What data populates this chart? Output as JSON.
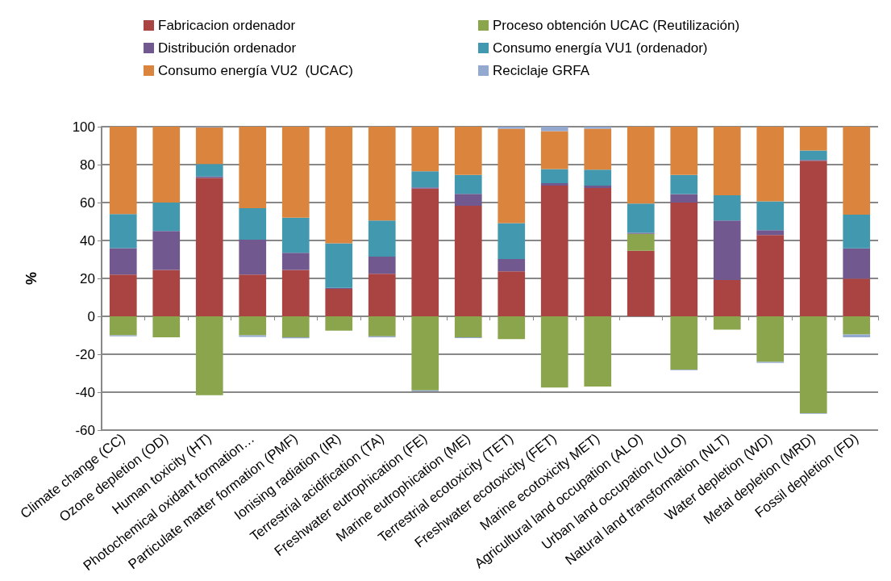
{
  "chart_data": {
    "type": "bar",
    "stacked": true,
    "ylabel": "%",
    "categories": [
      "Climate change (CC)",
      "Ozone depletion (OD)",
      "Human toxicity (HT)",
      "Photochemical oxidant formation…",
      "Particulate matter formation (PMF)",
      "Ionising radiation (IR)",
      "Terrestrial acidification (TA)",
      "Freshwater eutrophication (FE)",
      "Marine eutrophication (ME)",
      "Terrestrial ecotoxicity (TET)",
      "Freshwater ecotoxicity (FET)",
      "Marine ecotoxicity MET)",
      "Agricultural land occupation (ALO)",
      "Urban land occupation (ULO)",
      "Natural land transformation (NLT)",
      "Water depletion (WD)",
      "Metal depletion (MRD)",
      "Fossil depletion (FD)"
    ],
    "series": [
      {
        "name": "Fabricacion ordenador",
        "color": "#a94443",
        "values": [
          22,
          24.5,
          73,
          22,
          24.5,
          14.5,
          22.5,
          67.3,
          58.3,
          23.8,
          69,
          67.7,
          34.6,
          60,
          19.2,
          42.9,
          82,
          19.9
        ]
      },
      {
        "name": "Proceso obtención UCAC (Reutilización)",
        "color": "#8aa54b",
        "values": [
          -10,
          -11,
          -41.5,
          -10,
          -11,
          -7.5,
          -10.5,
          -39,
          -11,
          -12,
          -37.5,
          -37,
          8.9,
          -28,
          -7,
          -24,
          -51,
          -9.5
        ]
      },
      {
        "name": "Distribución ordenador",
        "color": "#71588f",
        "values": [
          14,
          20.5,
          0.7,
          18.5,
          9,
          0.5,
          9,
          0.7,
          6.3,
          6.4,
          1.2,
          1.2,
          0.6,
          4.5,
          31.3,
          2.5,
          0.5,
          16
        ]
      },
      {
        "name": "Consumo energía VU1 (ordenador)",
        "color": "#4298af",
        "values": [
          18,
          15,
          6.6,
          16.5,
          18.5,
          23.5,
          19,
          8.5,
          10,
          19,
          7.5,
          8.4,
          15.4,
          10.1,
          13.3,
          15.3,
          5,
          17.7
        ]
      },
      {
        "name": "Consumo energía VU2  (UCAC)",
        "color": "#db843d",
        "values": [
          46,
          40,
          19.4,
          43,
          48,
          61.5,
          49.5,
          23.5,
          25.4,
          49.7,
          20,
          21.6,
          40.5,
          25.4,
          36.2,
          39.3,
          12.5,
          46.4
        ]
      },
      {
        "name": "Reciclaje GRFA",
        "color": "#93a9d0",
        "values": [
          -0.5,
          0.3,
          0.5,
          -0.8,
          -0.5,
          0.3,
          -0.5,
          -0.5,
          -0.4,
          1.1,
          2.3,
          1.1,
          0.3,
          -0.4,
          0.3,
          -0.5,
          -0.3,
          -1.5
        ]
      }
    ],
    "ylim": [
      -60,
      100
    ],
    "yticks": [
      -60,
      -40,
      -20,
      0,
      20,
      40,
      60,
      80,
      100
    ],
    "grid": "y",
    "legend": "top"
  }
}
